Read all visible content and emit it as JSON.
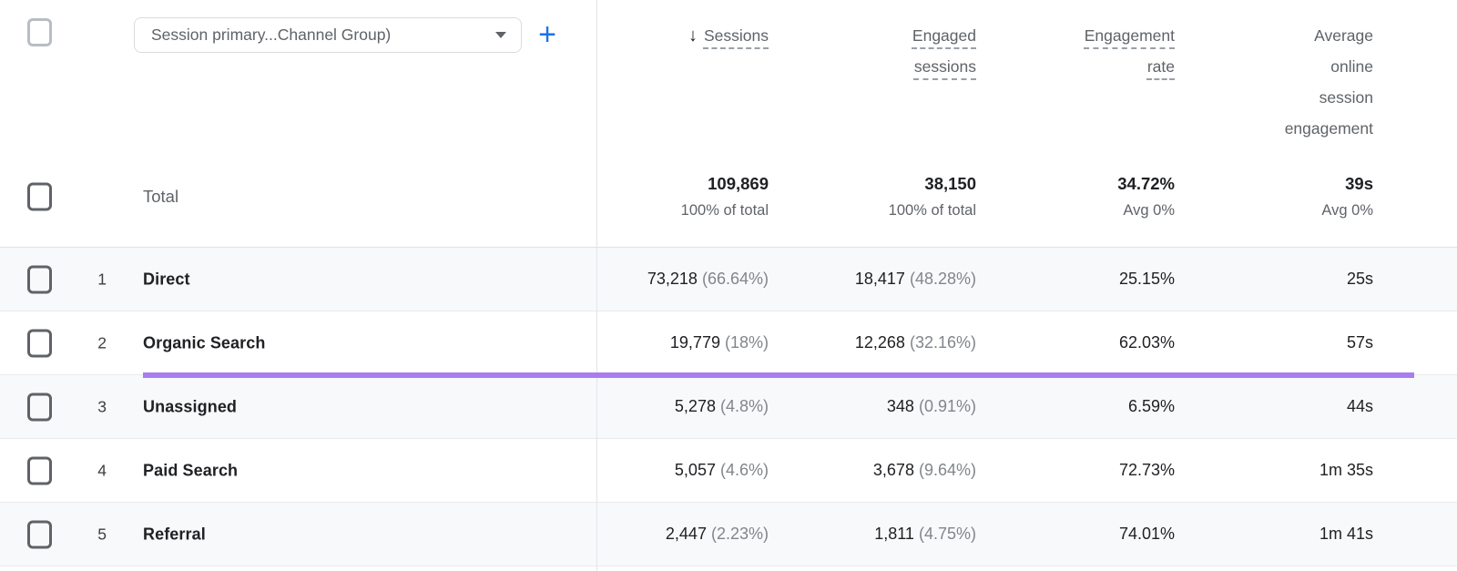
{
  "toolbar": {
    "dimension_selector": "Session primary...Channel Group)",
    "add_button_label": "+"
  },
  "header": {
    "sort_arrow": "↓",
    "columns": [
      {
        "label": "Sessions",
        "sorted": "descending",
        "dashed_underline": true
      },
      {
        "label": "Engaged\nsessions",
        "dashed_underline": true
      },
      {
        "label": "Engagement\nrate",
        "dashed_underline": true
      },
      {
        "label": "Average\nonline\nsession\nengagement",
        "dashed_underline": false
      }
    ]
  },
  "total": {
    "label": "Total",
    "metrics": [
      {
        "value": "109,869",
        "sub": "100% of total"
      },
      {
        "value": "38,150",
        "sub": "100% of total"
      },
      {
        "value": "34.72%",
        "sub": "Avg 0%"
      },
      {
        "value": "39s",
        "sub": "Avg 0%"
      }
    ]
  },
  "rows": [
    {
      "num": "1",
      "channel": "Direct",
      "sessions": "73,218",
      "sessions_share": "(66.64%)",
      "engaged": "18,417",
      "engaged_share": "(48.28%)",
      "engagement_rate": "25.15%",
      "avg_engagement": "25s"
    },
    {
      "num": "2",
      "channel": "Organic Search",
      "sessions": "19,779",
      "sessions_share": "(18%)",
      "engaged": "12,268",
      "engaged_share": "(32.16%)",
      "engagement_rate": "62.03%",
      "avg_engagement": "57s"
    },
    {
      "num": "3",
      "channel": "Unassigned",
      "sessions": "5,278",
      "sessions_share": "(4.8%)",
      "engaged": "348",
      "engaged_share": "(0.91%)",
      "engagement_rate": "6.59%",
      "avg_engagement": "44s"
    },
    {
      "num": "4",
      "channel": "Paid Search",
      "sessions": "5,057",
      "sessions_share": "(4.6%)",
      "engaged": "3,678",
      "engaged_share": "(9.64%)",
      "engagement_rate": "72.73%",
      "avg_engagement": "1m 35s"
    },
    {
      "num": "5",
      "channel": "Referral",
      "sessions": "2,447",
      "sessions_share": "(2.23%)",
      "engaged": "1,811",
      "engaged_share": "(4.75%)",
      "engagement_rate": "74.01%",
      "avg_engagement": "1m 41s"
    }
  ],
  "colors": {
    "accent_purple": "#a77df0",
    "accent_blue": "#1a73e8",
    "row_alt_background": "#f8f9fa",
    "text_primary": "#202124",
    "text_secondary": "#5f6368",
    "divider": "#e3e4e8"
  }
}
